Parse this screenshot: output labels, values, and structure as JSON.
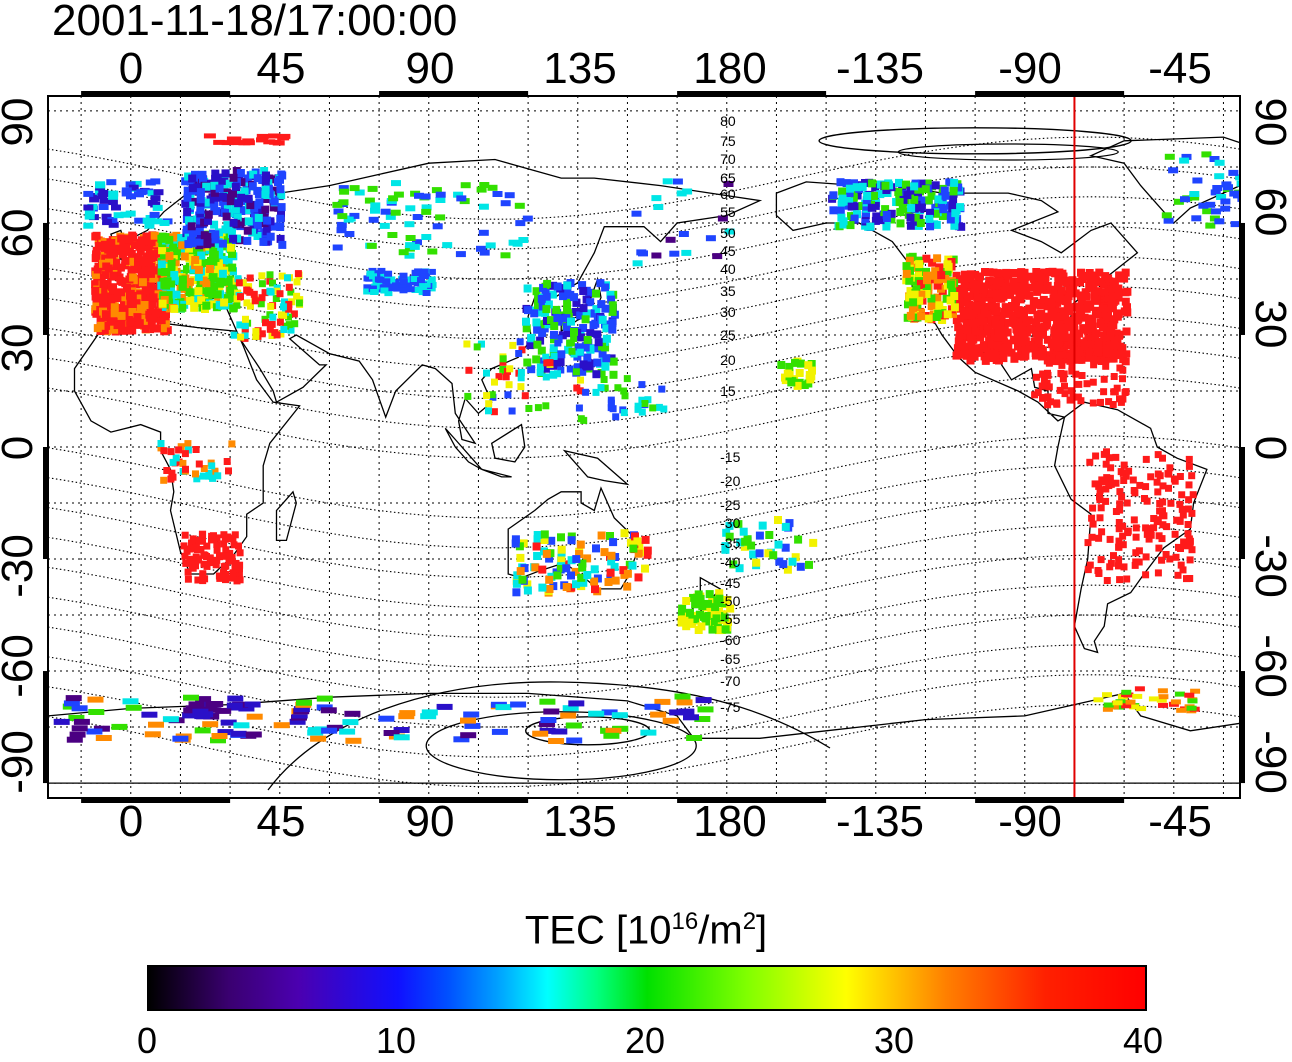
{
  "title": "2001-11-18/17:00:00",
  "lon_ticks": [
    "0",
    "45",
    "90",
    "135",
    "180",
    "-135",
    "-90",
    "-45"
  ],
  "lat_ticks": [
    "90",
    "60",
    "30",
    "0",
    "-30",
    "-60",
    "-90"
  ],
  "contour_labels": [
    "80",
    "75",
    "70",
    "65",
    "60",
    "55",
    "50",
    "45",
    "40",
    "35",
    "30",
    "25",
    "20",
    "15",
    "-15",
    "-20",
    "-25",
    "-30",
    "-35",
    "-40",
    "-45",
    "-50",
    "-55",
    "-60",
    "-65",
    "-70",
    "-75"
  ],
  "colorbar": {
    "label": "TEC  [10",
    "label_sup1": "16",
    "label_mid": "/m",
    "label_sup2": "2",
    "label_end": "]",
    "ticks": [
      "0",
      "10",
      "20",
      "30",
      "40"
    ],
    "min": 0,
    "max": 40
  },
  "colors": {
    "red": "#ff1a1a",
    "orange": "#ff8a00",
    "yellow": "#f2f200",
    "green": "#33e000",
    "cyan": "#00e6e6",
    "blue": "#1f44ff",
    "navy": "#2a10c8",
    "purple": "#4b0082",
    "meridian_line": "#e00000"
  },
  "map": {
    "lon_range": [
      -25,
      335
    ],
    "lat_range": [
      -94,
      94
    ],
    "red_meridian_lon": 285
  }
}
